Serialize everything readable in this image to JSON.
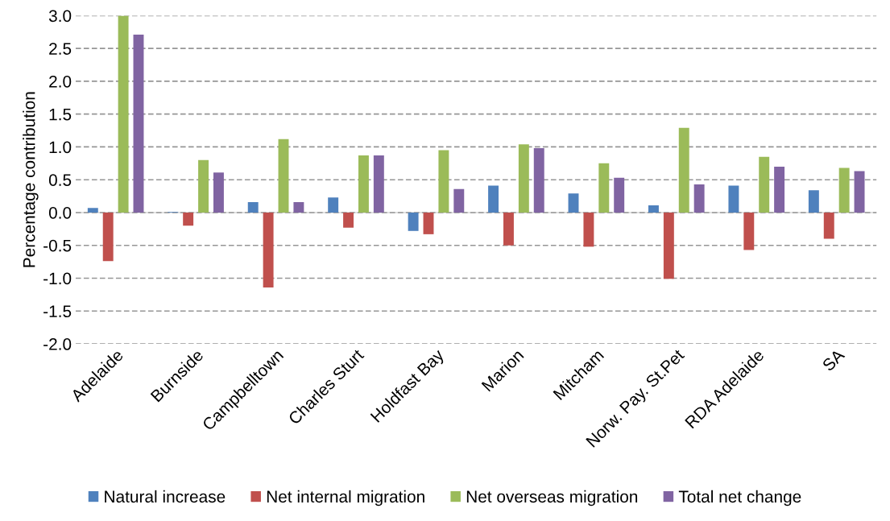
{
  "chart_data": {
    "type": "bar",
    "ylabel": "Percentage contribution",
    "categories": [
      "Adelaide",
      "Burnside",
      "Campbelltown",
      "Charles Sturt",
      "Holdfast Bay",
      "Marion",
      "Mitcham",
      "Norw. Pay. St.Pet",
      "RDA Adelaide",
      "SA"
    ],
    "series": [
      {
        "name": "Natural increase",
        "color": "#4f81bd",
        "values": [
          0.07,
          0.01,
          0.16,
          0.23,
          -0.28,
          0.41,
          0.29,
          0.11,
          0.41,
          0.34
        ]
      },
      {
        "name": "Net internal migration",
        "color": "#c0504d",
        "values": [
          -0.74,
          -0.2,
          -1.14,
          -0.23,
          -0.33,
          -0.5,
          -0.52,
          -1.01,
          -0.57,
          -0.4
        ]
      },
      {
        "name": "Net overseas migration",
        "color": "#9bbb59",
        "values": [
          3.0,
          0.8,
          1.12,
          0.87,
          0.95,
          1.04,
          0.75,
          1.29,
          0.85,
          0.68
        ]
      },
      {
        "name": "Total net change",
        "color": "#8064a2",
        "values": [
          2.71,
          0.61,
          0.16,
          0.87,
          0.36,
          0.98,
          0.53,
          0.43,
          0.7,
          0.63
        ]
      }
    ],
    "ylim": [
      -2.0,
      3.0
    ],
    "yticks": [
      {
        "value": -2.0,
        "label": "-2.0"
      },
      {
        "value": -1.5,
        "label": "-1.5"
      },
      {
        "value": -1.0,
        "label": "-1.0"
      },
      {
        "value": -0.5,
        "label": "-0.5"
      },
      {
        "value": 0,
        "label": "0.0"
      },
      {
        "value": 0.5,
        "label": "0.5"
      },
      {
        "value": 1.0,
        "label": "1.0"
      },
      {
        "value": 1.5,
        "label": "1.5"
      },
      {
        "value": 2.0,
        "label": "2.0"
      },
      {
        "value": 2.5,
        "label": "2.5"
      },
      {
        "value": 3.0,
        "label": "3.0"
      }
    ],
    "grid": "y",
    "legend": "bottom"
  }
}
